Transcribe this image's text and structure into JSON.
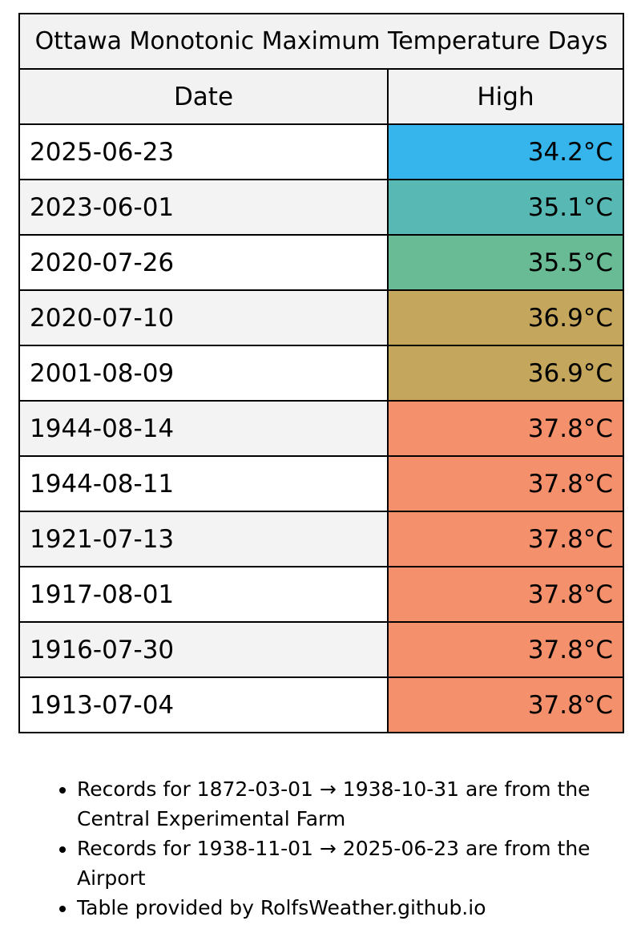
{
  "chart_data": {
    "type": "table",
    "title": "Ottawa Monotonic Maximum Temperature Days",
    "columns": [
      "Date",
      "High"
    ],
    "rows": [
      {
        "date": "2025-06-23",
        "high": "34.2°C",
        "value": 34.2,
        "color": "#36b4ec"
      },
      {
        "date": "2023-06-01",
        "high": "35.1°C",
        "value": 35.1,
        "color": "#58b8b4"
      },
      {
        "date": "2020-07-26",
        "high": "35.5°C",
        "value": 35.5,
        "color": "#68bb94"
      },
      {
        "date": "2020-07-10",
        "high": "36.9°C",
        "value": 36.9,
        "color": "#c4a75d"
      },
      {
        "date": "2001-08-09",
        "high": "36.9°C",
        "value": 36.9,
        "color": "#c4a75d"
      },
      {
        "date": "1944-08-14",
        "high": "37.8°C",
        "value": 37.8,
        "color": "#f4906b"
      },
      {
        "date": "1944-08-11",
        "high": "37.8°C",
        "value": 37.8,
        "color": "#f4906b"
      },
      {
        "date": "1921-07-13",
        "high": "37.8°C",
        "value": 37.8,
        "color": "#f4906b"
      },
      {
        "date": "1917-08-01",
        "high": "37.8°C",
        "value": 37.8,
        "color": "#f4906b"
      },
      {
        "date": "1916-07-30",
        "high": "37.8°C",
        "value": 37.8,
        "color": "#f4906b"
      },
      {
        "date": "1913-07-04",
        "high": "37.8°C",
        "value": 37.8,
        "color": "#f4906b"
      }
    ]
  },
  "notes": [
    "Records for 1872-03-01 → 1938-10-31 are from the Central Experimental Farm",
    "Records for 1938-11-01 → 2025-06-23 are from the Airport",
    "Table provided by RolfsWeather.github.io"
  ]
}
